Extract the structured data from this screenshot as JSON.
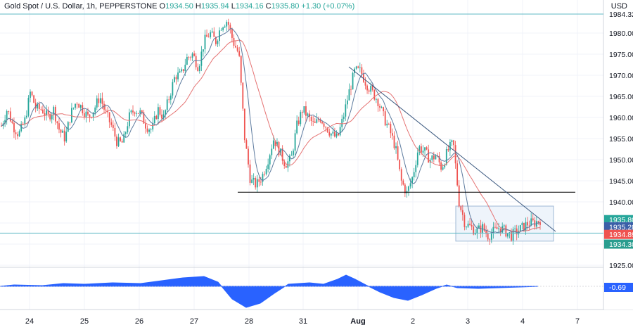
{
  "header": {
    "symbol": "Gold Spot / U.S. Dollar, 1h, PEPPERSTONE",
    "o_label": "O",
    "o_value": "1934.50",
    "h_label": "H",
    "h_value": "1935.94",
    "l_label": "L",
    "l_value": "1934.16",
    "c_label": "C",
    "c_value": "1935.80",
    "change": "+1.30 (+0.07%)",
    "currency": "USD"
  },
  "colors": {
    "up": "#26a69a",
    "down": "#ef5350",
    "ma_slow": "#e57373",
    "ma_fast": "#5c7a9e",
    "trendline": "#3d5a80",
    "level_line": "#5fb8c4",
    "support_line": "#000000",
    "range_box_fill": "#eef4fb",
    "range_box_stroke": "#9fb8d4",
    "oscillator": "#2962ff",
    "grid": "#f0f3fa",
    "axis_text": "#131722"
  },
  "chart_data": {
    "type": "candlestick",
    "y_ticks": [
      1925.0,
      1930.0,
      1935.0,
      1940.0,
      1945.0,
      1950.0,
      1955.0,
      1960.0,
      1965.0,
      1970.0,
      1975.0,
      1980.0
    ],
    "y_ticks_text": [
      "1925.00",
      "1930.00",
      "1935.00",
      "1940.00",
      "1945.00",
      "1950.00",
      "1955.00",
      "1960.00",
      "1965.00",
      "1970.00",
      "1975.00",
      "1980.00"
    ],
    "top_level_label": "1984.32",
    "x_labels": [
      "24",
      "25",
      "26",
      "27",
      "28",
      "31",
      "Aug",
      "2",
      "3",
      "4",
      "7"
    ],
    "price_labels": [
      {
        "text": "1935.80",
        "price": 1935.8,
        "color": "#26a69a"
      },
      {
        "text": "1935.28",
        "price": 1934.1,
        "color": "#3b5fa8"
      },
      {
        "text": "1934.89",
        "price": 1932.3,
        "color": "#ef5350"
      },
      {
        "text": "1934.30",
        "price": 1930.0,
        "color": "#2a9d8f"
      }
    ],
    "oscillator_label": "-0.69",
    "levels": {
      "top_line": 1984.32,
      "current_line": 1932.6,
      "support": 1942.3
    },
    "trendline": {
      "from_price": 1972.0,
      "to_price": 1933.0
    },
    "range_box": {
      "top": 1939.0,
      "bottom": 1930.7
    },
    "anchors": [
      1958,
      1962,
      1958,
      1956,
      1959,
      1966,
      1962,
      1962,
      1960,
      1962,
      1957,
      1955,
      1961,
      1964,
      1962,
      1960,
      1962,
      1965,
      1961,
      1958,
      1954,
      1954,
      1960,
      1962,
      1961,
      1958,
      1957,
      1962,
      1960,
      1965,
      1970,
      1970,
      1974,
      1975,
      1972,
      1978,
      1980,
      1978,
      1982,
      1983,
      1978,
      1975,
      1955,
      1945,
      1944,
      1946,
      1950,
      1955,
      1952,
      1949,
      1950,
      1958,
      1962,
      1960,
      1958,
      1960,
      1958,
      1956,
      1955,
      1960,
      1966,
      1971,
      1971,
      1968,
      1966,
      1964,
      1960,
      1957,
      1953,
      1945,
      1942,
      1946,
      1953,
      1952,
      1950,
      1951,
      1948,
      1952,
      1954,
      1940,
      1935,
      1934,
      1933,
      1934,
      1932,
      1933,
      1934,
      1933,
      1932,
      1933,
      1934,
      1935,
      1935,
      1935.8
    ]
  }
}
